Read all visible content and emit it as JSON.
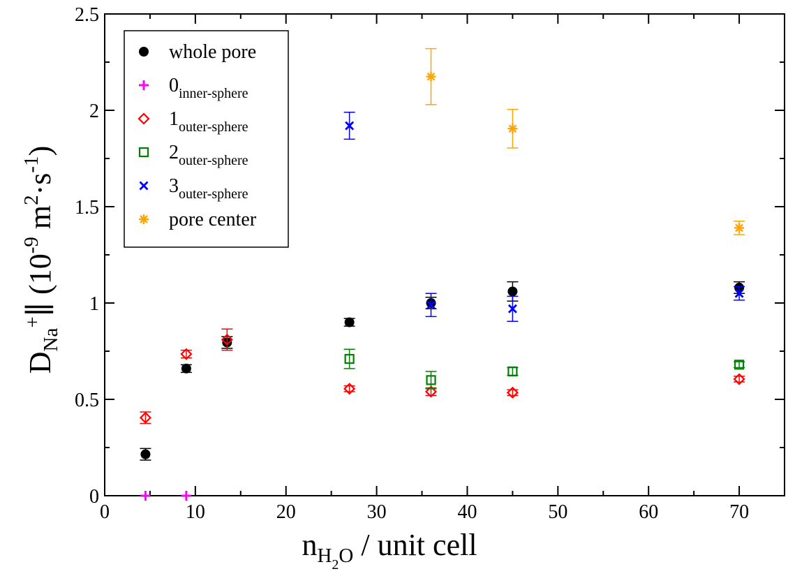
{
  "chart_data": {
    "type": "scatter",
    "xlabel": {
      "main": "n",
      "sub": "H",
      "sub2": "2",
      "sub3": "O",
      "rest": " / unit cell"
    },
    "ylabel": {
      "main": "D",
      "sub": "Na",
      "sup": "+",
      "bar": "∥",
      "unit_open": " (10",
      "exp": "-9",
      "m": " m",
      "m_exp": "2",
      "dot": "·s",
      "s_exp": "-1",
      "close": ")"
    },
    "xlim": [
      0,
      75
    ],
    "ylim": [
      0,
      2.5
    ],
    "xticks": [
      0,
      10,
      20,
      30,
      40,
      50,
      60,
      70
    ],
    "yticks": [
      0,
      0.5,
      1,
      1.5,
      2,
      2.5
    ],
    "xtick_labels": [
      "0",
      "10",
      "20",
      "30",
      "40",
      "50",
      "60",
      "70"
    ],
    "ytick_labels": [
      "0",
      "0.5",
      "1",
      "1.5",
      "2",
      "2.5"
    ],
    "grid": false,
    "legend_position": "top-left",
    "series": [
      {
        "name": "whole pore",
        "sub": "",
        "color": "#000000",
        "marker": "circle",
        "x": [
          4.5,
          9,
          13.5,
          27,
          36,
          45,
          70
        ],
        "y": [
          0.215,
          0.66,
          0.795,
          0.9,
          1.0,
          1.06,
          1.08
        ],
        "err": [
          0.03,
          0.02,
          0.03,
          0.02,
          0.03,
          0.05,
          0.03
        ]
      },
      {
        "name": "0",
        "sub": "inner-sphere",
        "color": "#ff00ff",
        "marker": "plus",
        "x": [
          4.5,
          9
        ],
        "y": [
          0.0,
          0.0
        ],
        "err": [
          0,
          0
        ]
      },
      {
        "name": "1",
        "sub": "outer-sphere",
        "color": "#ff0000",
        "marker": "diamond",
        "x": [
          4.5,
          9,
          13.5,
          27,
          36,
          45,
          70
        ],
        "y": [
          0.405,
          0.735,
          0.81,
          0.555,
          0.54,
          0.535,
          0.605
        ],
        "err": [
          0.03,
          0.02,
          0.055,
          0.015,
          0.02,
          0.015,
          0.015
        ]
      },
      {
        "name": "2",
        "sub": "outer-sphere",
        "color": "#008000",
        "marker": "square",
        "x": [
          27,
          36,
          45,
          70
        ],
        "y": [
          0.71,
          0.6,
          0.645,
          0.68
        ],
        "err": [
          0.05,
          0.045,
          0.02,
          0.015
        ]
      },
      {
        "name": "3",
        "sub": "outer-sphere",
        "color": "#0000ff",
        "marker": "x",
        "x": [
          27,
          36,
          45,
          70
        ],
        "y": [
          1.92,
          0.99,
          0.97,
          1.05
        ],
        "err": [
          0.07,
          0.06,
          0.065,
          0.035
        ]
      },
      {
        "name": "pore center",
        "sub": "",
        "color": "#ffa500",
        "marker": "asterisk",
        "x": [
          36,
          45,
          70
        ],
        "y": [
          2.175,
          1.905,
          1.39
        ],
        "err": [
          0.145,
          0.1,
          0.035
        ]
      }
    ]
  }
}
